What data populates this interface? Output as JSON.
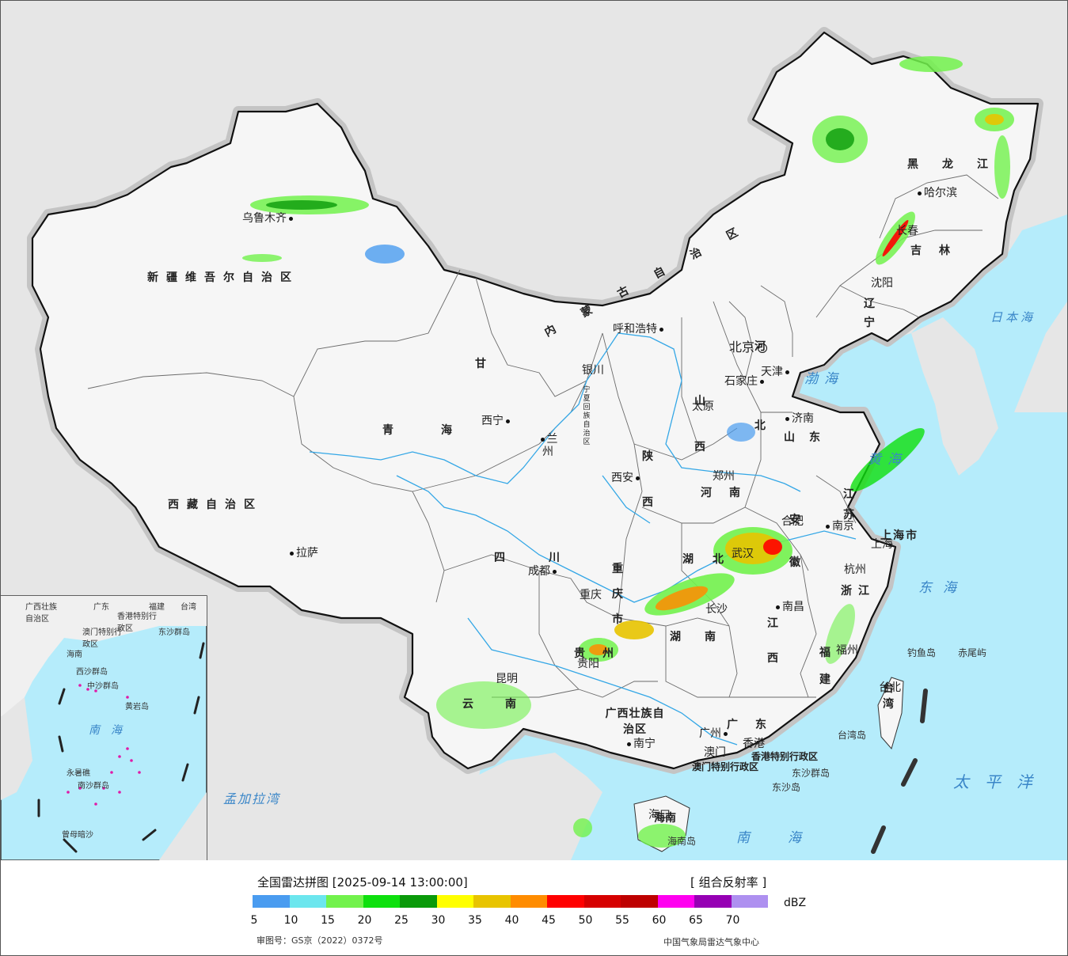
{
  "colors": {
    "sea": "#b5ecfb",
    "foreign_land": "#e6e6e6",
    "china_land": "#f6f6f6",
    "border": "#111111",
    "river": "#34a7e6"
  },
  "legend": {
    "title": "全国雷达拼图 [2025-09-14 13:00:00]",
    "product": "[ 组合反射率 ]",
    "unit": "dBZ",
    "colors": [
      "#4a9cf0",
      "#6ce6ee",
      "#72f24c",
      "#0ee00e",
      "#0a9a0a",
      "#ffff00",
      "#e8c400",
      "#ff8c00",
      "#ff0000",
      "#d60000",
      "#be0000",
      "#ff00f0",
      "#9600b4",
      "#ae90f0"
    ],
    "ticks": [
      "5",
      "10",
      "15",
      "20",
      "25",
      "30",
      "35",
      "40",
      "45",
      "50",
      "55",
      "60",
      "65",
      "70"
    ],
    "review_no": "审图号：GS京（2022）0372号",
    "source": "中国气象局雷达气象中心"
  },
  "provinces": {
    "xinjiang": "新疆维吾尔自治区",
    "xizang": "西藏自治区",
    "qinghai": "青海",
    "gansu": "甘",
    "sichuan": "四川",
    "yunnan": "云南",
    "guizhou": "贵州",
    "chongqing": "重庆市",
    "shaanxi": "陕西",
    "shanxi": "山西",
    "henan": "河南",
    "hubei": "湖北",
    "hunan": "湖南",
    "jiangxi": "江西",
    "fujian": "福建",
    "zhejiang": "浙江",
    "anhui": "安徽",
    "jiangsu": "江苏",
    "shandong": "山东",
    "hebei": "河北",
    "liaoning": "辽宁",
    "jilin": "吉林",
    "heilongjiang": "黑龙江",
    "neimenggu": "内蒙古自治区",
    "guangxi": "广西壮族自治区",
    "guangdong": "广东",
    "hainan": "海南",
    "taiwan": "台湾",
    "shanghai": "上海市",
    "ningxia": "宁夏回族自治区",
    "hk": "香港特别行政区",
    "macau": "澳门特别行政区"
  },
  "cities": {
    "urumqi": "乌鲁木齐",
    "lhasa": "拉萨",
    "xining": "西宁",
    "lanzhou": "兰州",
    "yinchuan": "银川",
    "hohhot": "呼和浩特",
    "beijing": "北京",
    "tianjin": "天津",
    "shijiazhuang": "石家庄",
    "taiyuan": "太原",
    "jinan": "济南",
    "shenyang": "沈阳",
    "changchun": "长春",
    "harbin": "哈尔滨",
    "xian": "西安",
    "zhengzhou": "郑州",
    "hefei": "合肥",
    "nanjing": "南京",
    "shanghai": "上海",
    "hangzhou": "杭州",
    "wuhan": "武汉",
    "chengdu": "成都",
    "chongqing": "重庆",
    "changsha": "长沙",
    "nanchang": "南昌",
    "fuzhou": "福州",
    "guiyang": "贵阳",
    "kunming": "昆明",
    "nanning": "南宁",
    "guangzhou": "广州",
    "hongkong": "香港",
    "macau": "澳门",
    "haikou": "海口",
    "taipei": "台北"
  },
  "seas": {
    "bohai": "渤海",
    "huanghai": "黄海",
    "donghai": "东海",
    "nanhai": "南海",
    "taipingyang": "太平洋",
    "ribenhai": "日本海",
    "mengjialawan": "孟加拉湾",
    "inset_nanhai": "南海"
  },
  "islands": {
    "diaoyu": "钓鱼岛",
    "chiwei": "赤尾屿",
    "taiwan_island": "台湾岛",
    "dongsha_qundao": "东沙群岛",
    "dongsha_dao": "东沙岛",
    "hainan_island": "海南岛"
  },
  "inset": {
    "guangxi": "广西壮族自治区",
    "guangdong": "广东",
    "fujian": "福建",
    "taiwan": "台湾",
    "hk": "香港特别行政区",
    "macau": "澳门特别行政区",
    "hainan": "海南",
    "xisha": "西沙群岛",
    "zhongsha": "中沙群岛",
    "nansha": "南沙群岛",
    "huangyan": "黄岩岛",
    "yongshu": "永暑礁",
    "zengmu": "曾母暗沙",
    "dongsha": "东沙群岛"
  }
}
